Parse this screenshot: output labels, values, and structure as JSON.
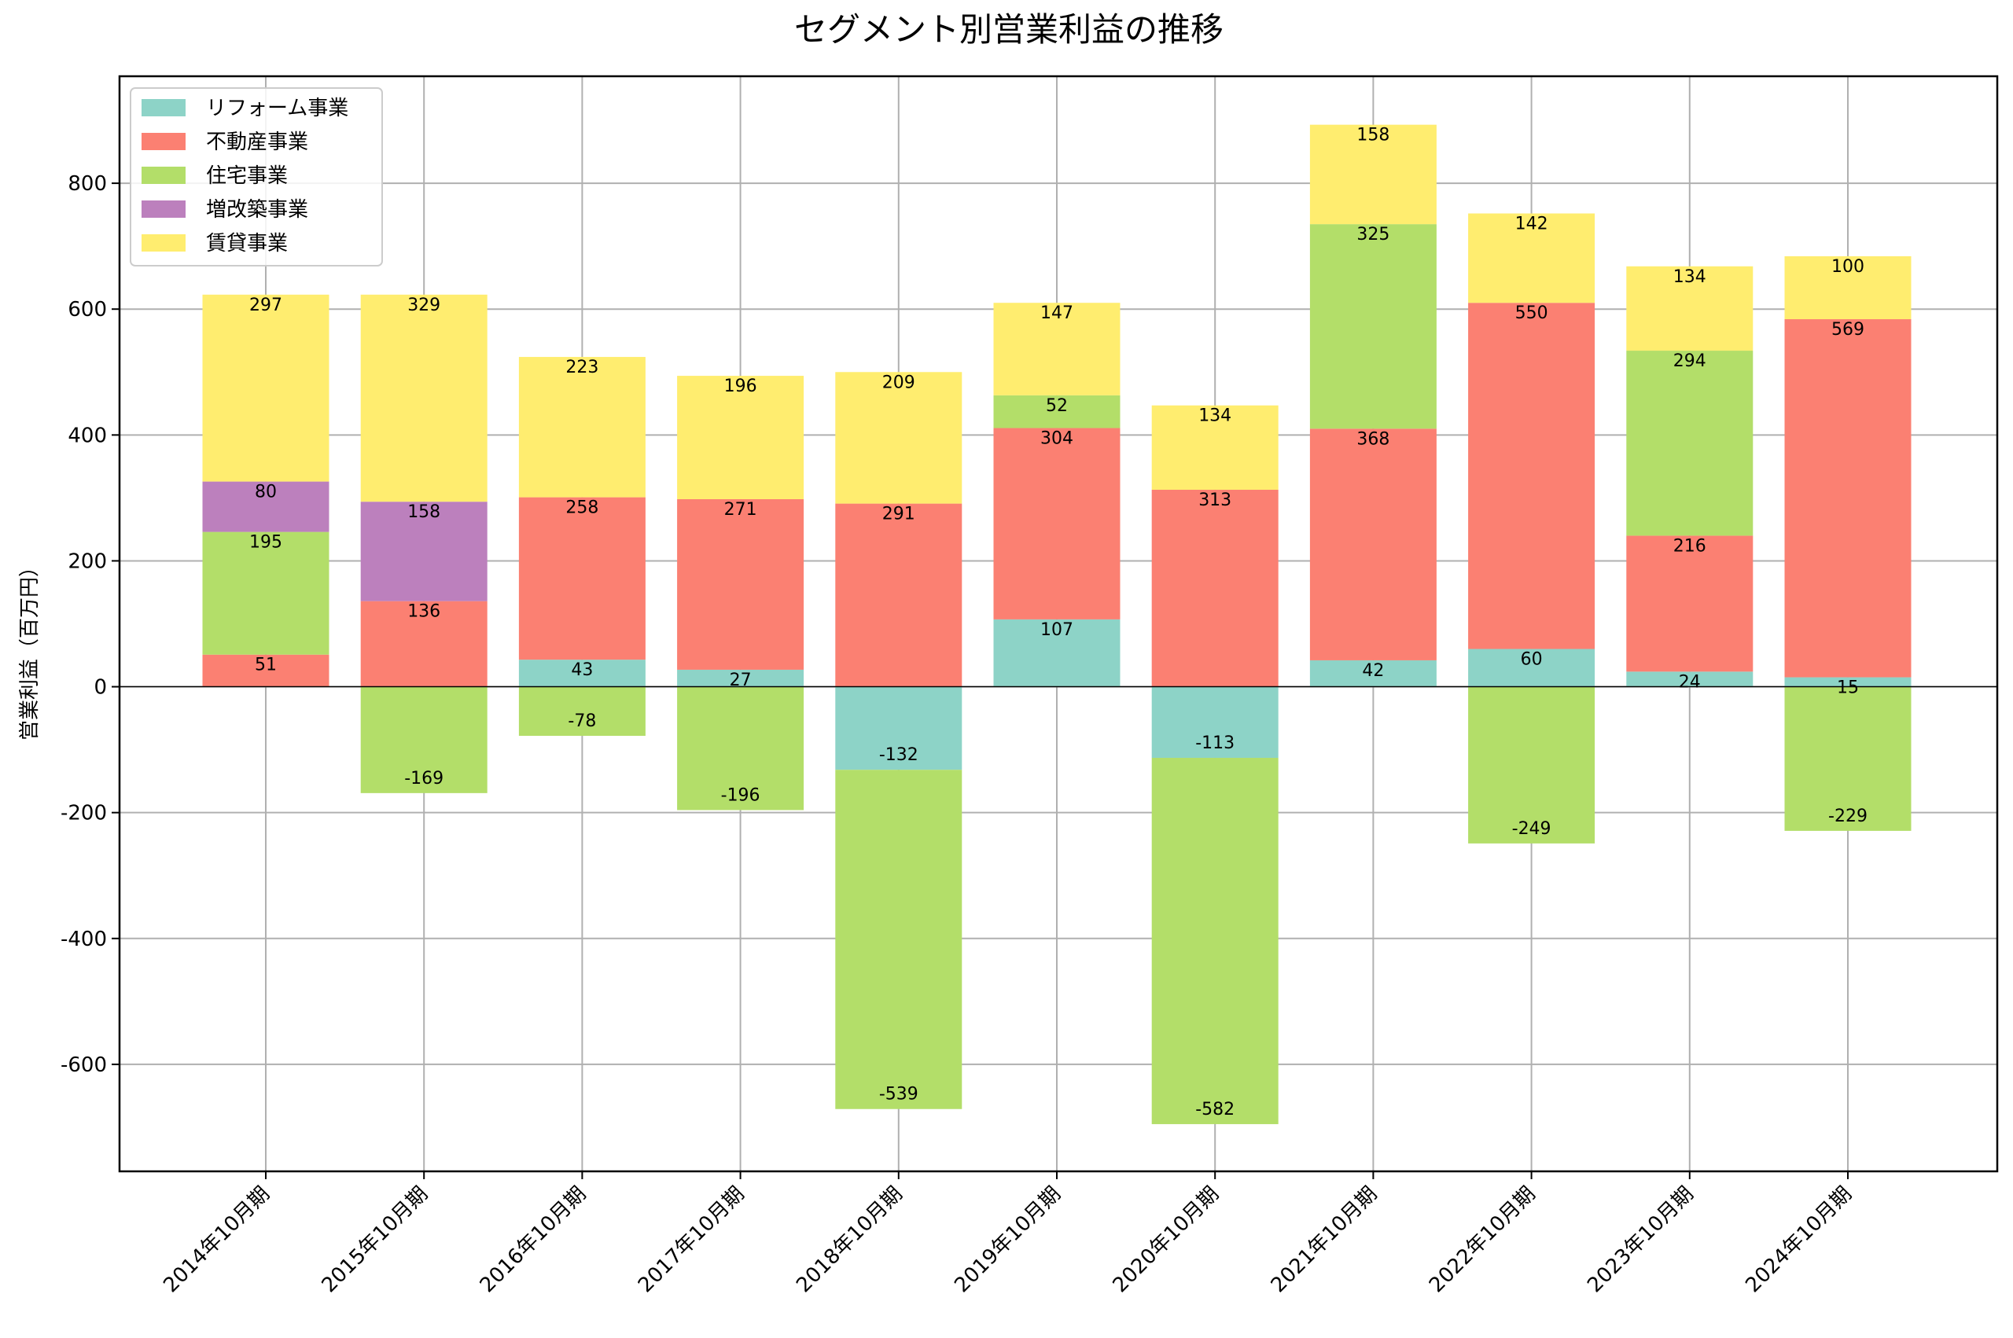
{
  "chart_data": {
    "type": "bar",
    "stacked": true,
    "title": "セグメント別営業利益の推移",
    "xlabel": "",
    "ylabel": "営業利益（百万円）",
    "ylim": [
      -770,
      970
    ],
    "yticks": [
      -600,
      -400,
      -200,
      0,
      200,
      400,
      600,
      800
    ],
    "grid": true,
    "legend_position": "top-left",
    "categories": [
      "2014年10月期",
      "2015年10月期",
      "2016年10月期",
      "2017年10月期",
      "2018年10月期",
      "2019年10月期",
      "2020年10月期",
      "2021年10月期",
      "2022年10月期",
      "2023年10月期",
      "2024年10月期"
    ],
    "series": [
      {
        "name": "リフォーム事業",
        "color": "#8dd3c7",
        "values": [
          null,
          null,
          43,
          27,
          -132,
          107,
          -113,
          42,
          60,
          24,
          15
        ]
      },
      {
        "name": "不動産事業",
        "color": "#fb8072",
        "values": [
          51,
          136,
          258,
          271,
          291,
          304,
          313,
          368,
          550,
          216,
          569
        ]
      },
      {
        "name": "住宅事業",
        "color": "#b3de69",
        "values": [
          195,
          -169,
          -78,
          -196,
          -539,
          52,
          -582,
          325,
          -249,
          294,
          -229
        ]
      },
      {
        "name": "増改築事業",
        "color": "#bc80bd",
        "values": [
          80,
          158,
          null,
          null,
          null,
          null,
          null,
          null,
          null,
          null,
          null
        ]
      },
      {
        "name": "賃貸事業",
        "color": "#ffed6f",
        "values": [
          297,
          329,
          223,
          196,
          209,
          147,
          134,
          158,
          142,
          134,
          100
        ]
      }
    ]
  }
}
